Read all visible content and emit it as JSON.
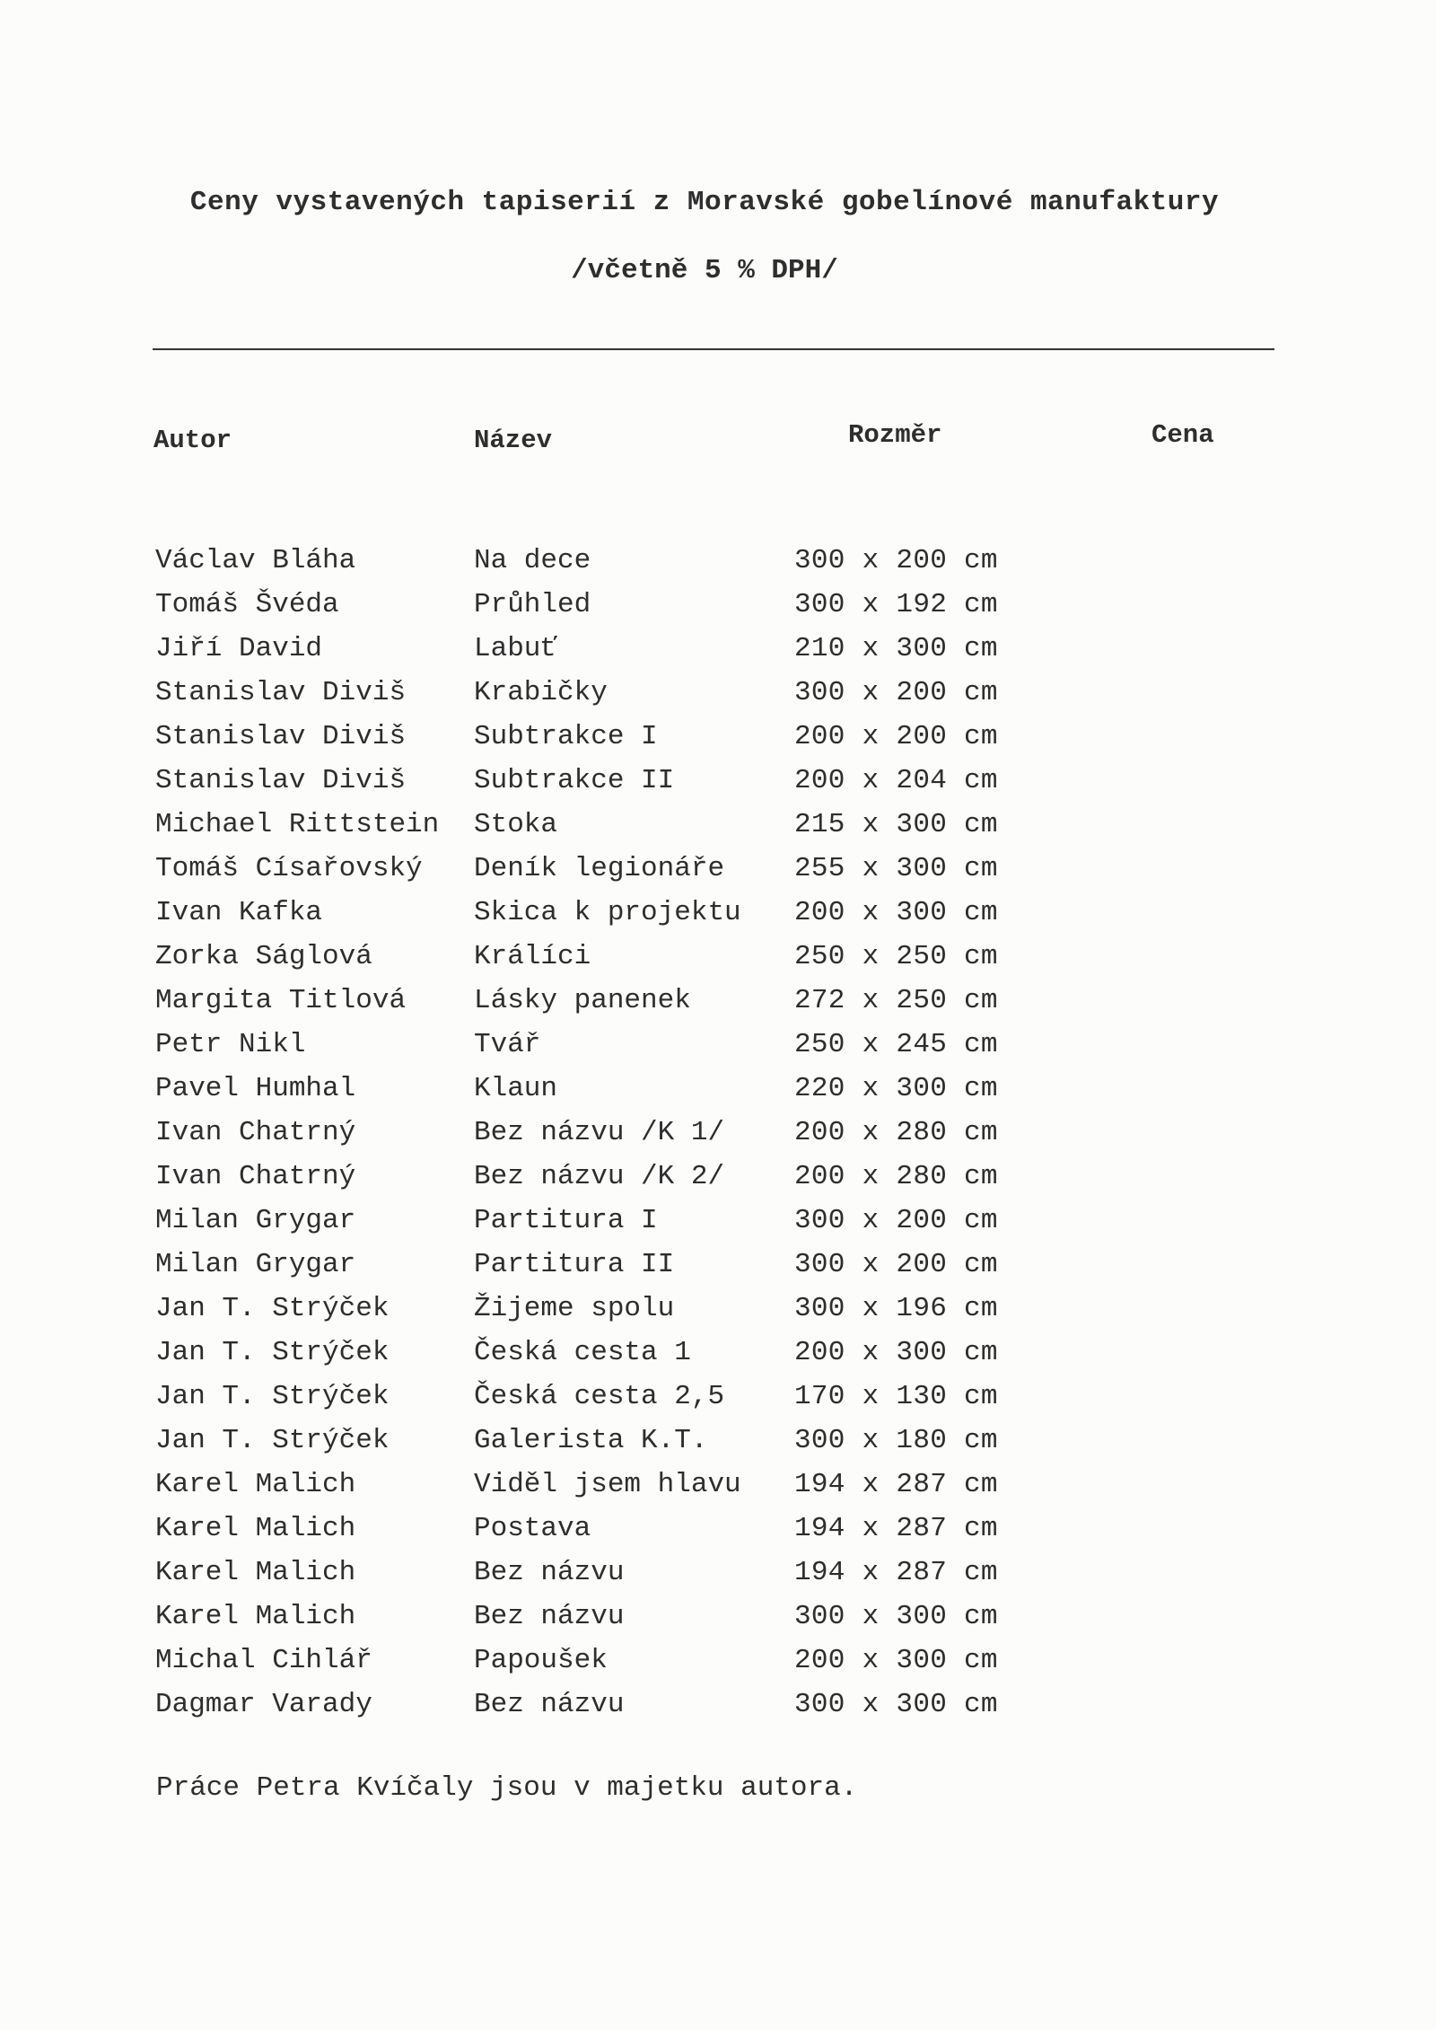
{
  "document": {
    "title": "Ceny vystavených tapiserií z Moravské gobelínové manufaktury",
    "subtitle": "/včetně 5 % DPH/",
    "columns": [
      "Autor",
      "Název",
      "Rozměr",
      "Cena"
    ],
    "rows": [
      {
        "author": "Václav Bláha",
        "title": "Na dece",
        "size": "300 x 200 cm"
      },
      {
        "author": "Tomáš Švéda",
        "title": "Průhled",
        "size": "300 x 192 cm"
      },
      {
        "author": "Jiří David",
        "title": "Labuť",
        "size": "210 x 300 cm"
      },
      {
        "author": "Stanislav Diviš",
        "title": "Krabičky",
        "size": "300 x 200 cm"
      },
      {
        "author": "Stanislav Diviš",
        "title": "Subtrakce I",
        "size": "200 x 200 cm"
      },
      {
        "author": "Stanislav Diviš",
        "title": "Subtrakce II",
        "size": "200 x 204 cm"
      },
      {
        "author": "Michael Rittstein",
        "title": "Stoka",
        "size": "215 x 300 cm"
      },
      {
        "author": "Tomáš Císařovský",
        "title": "Deník legionáře",
        "size": "255 x 300 cm"
      },
      {
        "author": "Ivan Kafka",
        "title": "Skica k projektu",
        "size": "200 x 300 cm"
      },
      {
        "author": "Zorka Ságlová",
        "title": "Králíci",
        "size": "250 x 250 cm"
      },
      {
        "author": "Margita Titlová",
        "title": "Lásky panenek",
        "size": "272 x 250 cm"
      },
      {
        "author": "Petr Nikl",
        "title": "Tvář",
        "size": "250 x 245 cm"
      },
      {
        "author": "Pavel Humhal",
        "title": "Klaun",
        "size": "220 x 300 cm"
      },
      {
        "author": "Ivan Chatrný",
        "title": "Bez názvu /K 1/",
        "size": "200 x 280 cm"
      },
      {
        "author": "Ivan Chatrný",
        "title": "Bez názvu /K 2/",
        "size": "200 x 280 cm"
      },
      {
        "author": "Milan Grygar",
        "title": "Partitura I",
        "size": "300 x 200 cm"
      },
      {
        "author": "Milan Grygar",
        "title": "Partitura II",
        "size": "300 x 200 cm"
      },
      {
        "author": "Jan T. Strýček",
        "title": "Žijeme spolu",
        "size": "300 x 196 cm"
      },
      {
        "author": "Jan T. Strýček",
        "title": "Česká cesta 1",
        "size": "200 x 300 cm"
      },
      {
        "author": "Jan T. Strýček",
        "title": "Česká cesta 2,5",
        "size": "170 x 130 cm"
      },
      {
        "author": "Jan T. Strýček",
        "title": "Galerista K.T.",
        "size": "300 x 180 cm"
      },
      {
        "author": "Karel Malich",
        "title": "Viděl jsem hlavu",
        "size": "194 x 287 cm"
      },
      {
        "author": "Karel Malich",
        "title": "Postava",
        "size": "194 x 287 cm"
      },
      {
        "author": "Karel Malich",
        "title": "Bez názvu",
        "size": "194 x 287 cm"
      },
      {
        "author": "Karel Malich",
        "title": "Bez názvu",
        "size": "300 x 300 cm"
      },
      {
        "author": "Michal Cihlář",
        "title": "Papoušek",
        "size": "200 x 300 cm"
      },
      {
        "author": "Dagmar Varady",
        "title": "Bez názvu",
        "size": "300 x 300 cm"
      }
    ],
    "footer": "Práce Petra Kvíčaly jsou v majetku autora."
  }
}
